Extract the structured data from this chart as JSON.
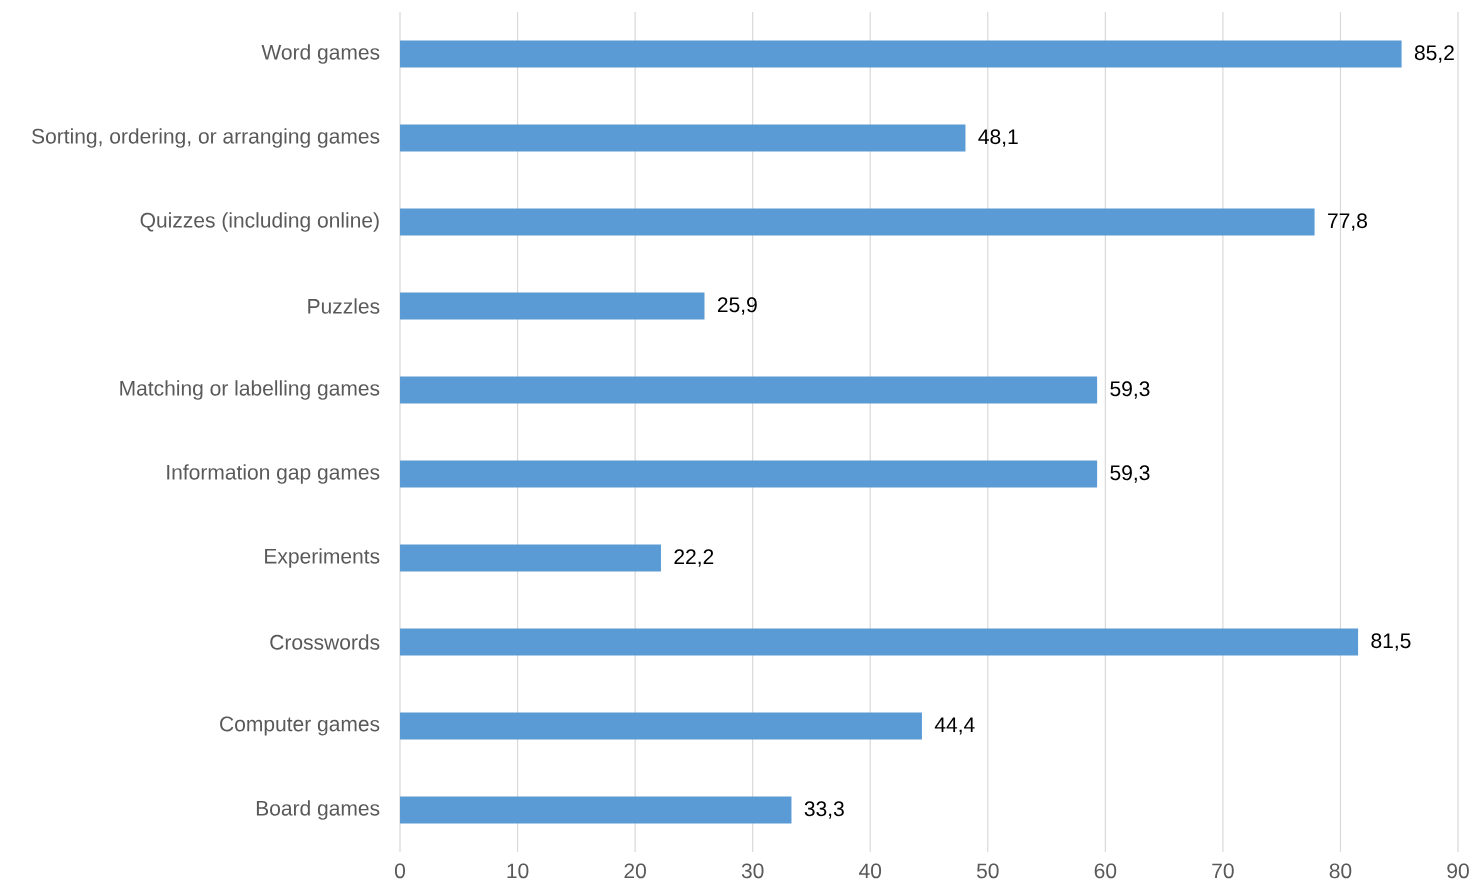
{
  "chart_data": {
    "type": "bar",
    "orientation": "horizontal",
    "categories": [
      "Word games",
      "Sorting, ordering, or arranging games",
      "Quizzes (including online)",
      "Puzzles",
      "Matching or labelling games",
      "Information gap games",
      "Experiments",
      "Crosswords",
      "Computer games",
      "Board games"
    ],
    "values": [
      85.2,
      48.1,
      77.8,
      25.9,
      59.3,
      59.3,
      22.2,
      81.5,
      44.4,
      33.3
    ],
    "value_labels": [
      "85,2",
      "48,1",
      "77,8",
      "25,9",
      "59,3",
      "59,3",
      "22,2",
      "81,5",
      "44,4",
      "33,3"
    ],
    "color": "#5b9bd5",
    "xlim": [
      0,
      90
    ],
    "xticks": [
      0,
      10,
      20,
      30,
      40,
      50,
      60,
      70,
      80,
      90
    ],
    "grid": "x"
  }
}
